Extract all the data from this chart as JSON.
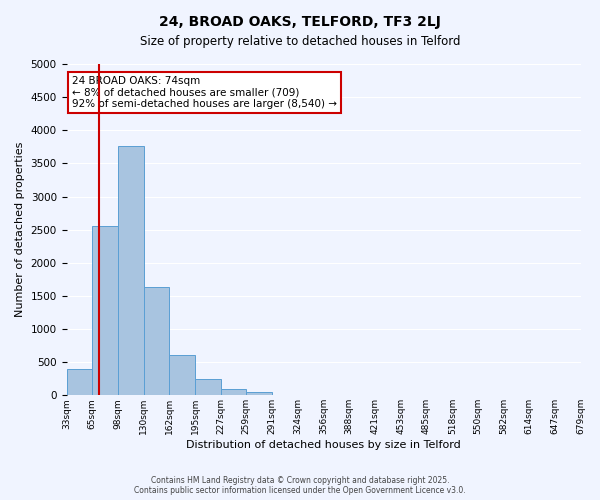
{
  "title1": "24, BROAD OAKS, TELFORD, TF3 2LJ",
  "title2": "Size of property relative to detached houses in Telford",
  "xlabel": "Distribution of detached houses by size in Telford",
  "ylabel": "Number of detached properties",
  "bar_color": "#a8c4e0",
  "bar_edge_color": "#5a9fd4",
  "background_color": "#f0f4ff",
  "grid_color": "#ffffff",
  "bin_edges": [
    33,
    65,
    98,
    130,
    162,
    195,
    227,
    259,
    291,
    324,
    356,
    388,
    421,
    453,
    485,
    518,
    550,
    582,
    614,
    647,
    679
  ],
  "bin_labels": [
    "33sqm",
    "65sqm",
    "98sqm",
    "130sqm",
    "162sqm",
    "195sqm",
    "227sqm",
    "259sqm",
    "291sqm",
    "324sqm",
    "356sqm",
    "388sqm",
    "421sqm",
    "453sqm",
    "485sqm",
    "518sqm",
    "550sqm",
    "582sqm",
    "614sqm",
    "647sqm",
    "679sqm"
  ],
  "counts": [
    390,
    2550,
    3760,
    1640,
    610,
    245,
    95,
    45,
    0,
    0,
    0,
    0,
    0,
    0,
    0,
    0,
    0,
    0,
    0,
    0
  ],
  "property_size": 74,
  "property_line_x": 74,
  "red_line_color": "#cc0000",
  "annotation_title": "24 BROAD OAKS: 74sqm",
  "annotation_line1": "← 8% of detached houses are smaller (709)",
  "annotation_line2": "92% of semi-detached houses are larger (8,540) →",
  "annotation_box_color": "#ffffff",
  "annotation_box_edge": "#cc0000",
  "ylim": [
    0,
    5000
  ],
  "yticks": [
    0,
    500,
    1000,
    1500,
    2000,
    2500,
    3000,
    3500,
    4000,
    4500,
    5000
  ],
  "footer1": "Contains HM Land Registry data © Crown copyright and database right 2025.",
  "footer2": "Contains public sector information licensed under the Open Government Licence v3.0."
}
